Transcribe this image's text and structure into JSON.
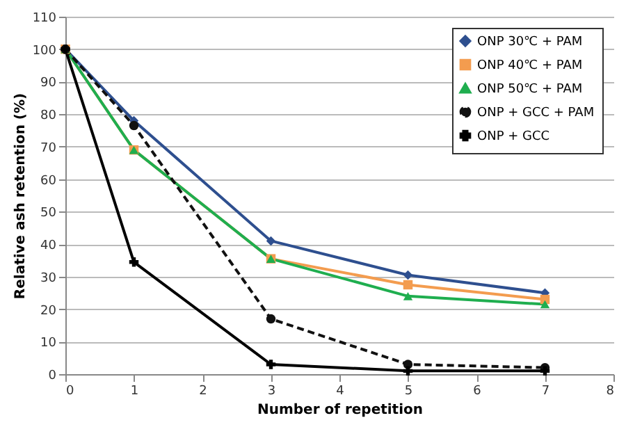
{
  "chart_data": {
    "type": "line",
    "xlabel": "Number of repetition",
    "ylabel": "Relative ash retention (%)",
    "x": [
      0,
      1,
      3,
      5,
      7
    ],
    "xlim": [
      0,
      8
    ],
    "xticks": [
      0,
      1,
      2,
      3,
      4,
      5,
      6,
      7,
      8
    ],
    "ylim": [
      0,
      110
    ],
    "yticks": [
      0,
      10,
      20,
      30,
      40,
      50,
      60,
      70,
      80,
      90,
      100,
      110
    ],
    "grid": "y",
    "legend": "top right",
    "series": [
      {
        "name": "ONP 30℃ + PAM",
        "color": "#2e4f8f",
        "marker": "diamond",
        "line_style": "solid",
        "values": [
          100,
          78,
          41,
          30.5,
          25
        ]
      },
      {
        "name": "ONP 40℃ + PAM",
        "color": "#f39c4f",
        "marker": "square",
        "line_style": "solid",
        "values": [
          100,
          69,
          35.5,
          27.5,
          23
        ]
      },
      {
        "name": "ONP 50℃ + PAM",
        "color": "#1fae4f",
        "marker": "triangle",
        "line_style": "solid",
        "values": [
          100,
          69,
          35.5,
          24,
          21.5
        ]
      },
      {
        "name": "ONP + GCC + PAM",
        "color": "#111111",
        "marker": "circle",
        "line_style": "dashed",
        "values": [
          100,
          76.5,
          17,
          3,
          2
        ]
      },
      {
        "name": "ONP + GCC",
        "color": "#000000",
        "marker": "cross",
        "line_style": "solid",
        "values": [
          100,
          34.5,
          3,
          1,
          1
        ]
      }
    ]
  }
}
